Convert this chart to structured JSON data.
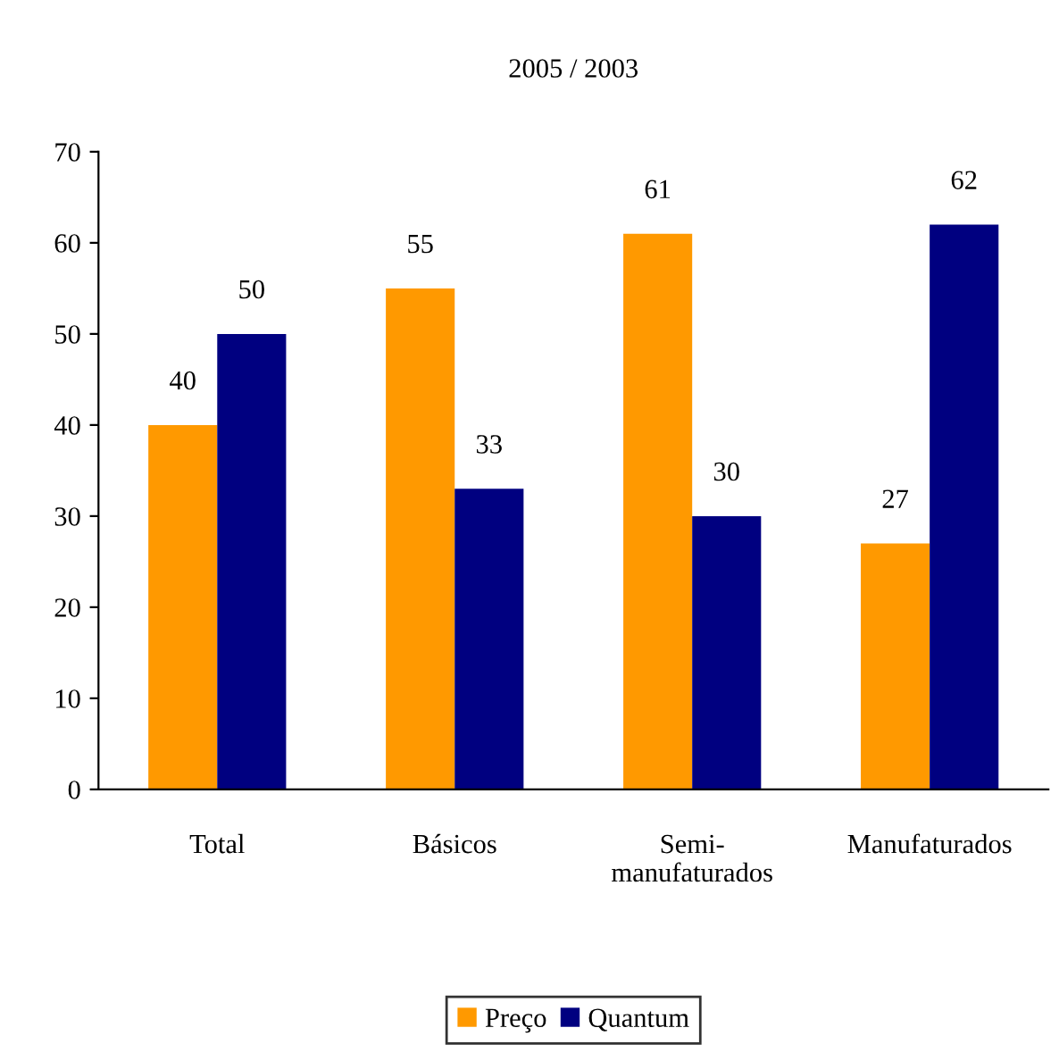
{
  "chart_data": {
    "type": "bar",
    "title": "2005 / 2003",
    "categories": [
      "Total",
      "Básicos",
      "Semi-\nmanufaturados",
      "Manufaturados"
    ],
    "series": [
      {
        "name": "Preço",
        "color": "#ff9900",
        "values": [
          40,
          55,
          61,
          27
        ]
      },
      {
        "name": "Quantum",
        "color": "#000080",
        "values": [
          50,
          33,
          30,
          62
        ]
      }
    ],
    "ylim": [
      0,
      70
    ],
    "yticks": [
      0,
      10,
      20,
      30,
      40,
      50,
      60,
      70
    ],
    "data_labels": true,
    "grid": false,
    "legend": "bottom"
  }
}
